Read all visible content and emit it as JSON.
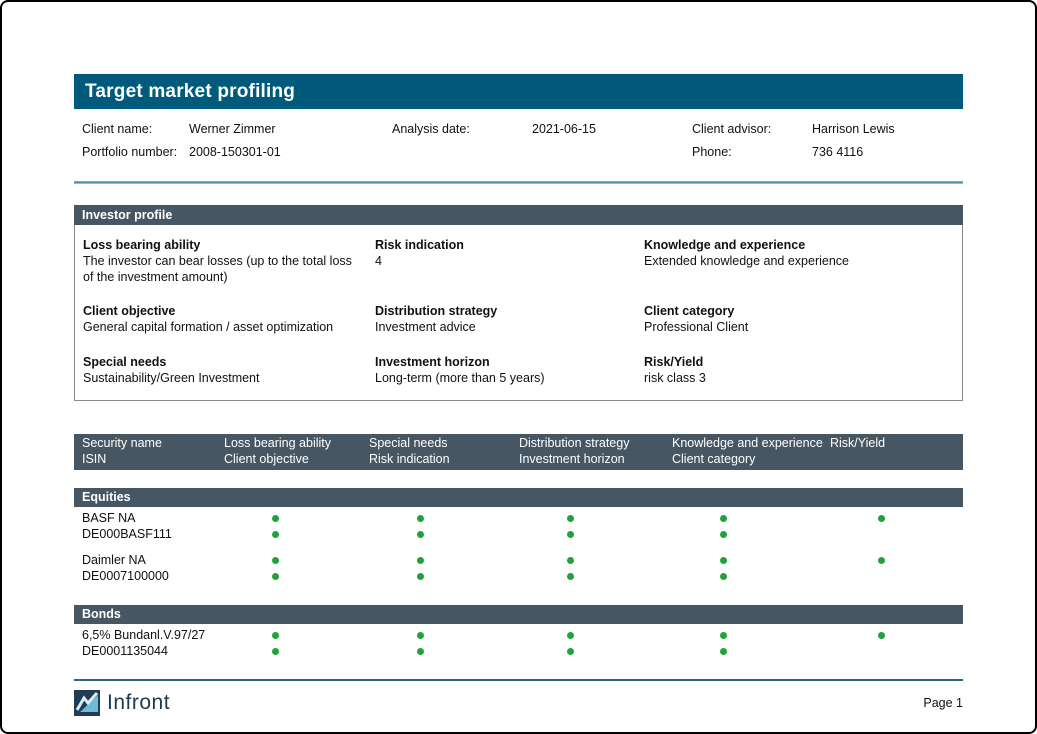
{
  "colors": {
    "title_bar_teal": "#005a7c",
    "section_bar_slate": "#475663",
    "match_dot_green": "#21a33c",
    "divider_teal": "#45809e",
    "brand_navy": "#1d3a52",
    "logo_light_blue": "#6fbcd6"
  },
  "header": {
    "title": "Target market profiling"
  },
  "client_info": {
    "client_name_label": "Client name:",
    "client_name": "Werner Zimmer",
    "portfolio_label": "Portfolio number:",
    "portfolio": "2008-150301-01",
    "analysis_date_label": "Analysis date:",
    "analysis_date": "2021-06-15",
    "advisor_label": "Client advisor:",
    "advisor": "Harrison Lewis",
    "phone_label": "Phone:",
    "phone": "736 4116"
  },
  "investor_profile": {
    "section_title": "Investor profile",
    "fields": [
      {
        "label": "Loss bearing ability",
        "value": "The investor can bear losses (up to the total loss of the investment amount)"
      },
      {
        "label": "Risk indication",
        "value": "4"
      },
      {
        "label": "Knowledge and experience",
        "value": "Extended knowledge and experience"
      },
      {
        "label": "Client objective",
        "value": "General capital formation / asset optimization"
      },
      {
        "label": "Distribution strategy",
        "value": "Investment advice"
      },
      {
        "label": "Client category",
        "value": "Professional Client"
      },
      {
        "label": "Special needs",
        "value": "Sustainability/Green Investment"
      },
      {
        "label": "Investment horizon",
        "value": "Long-term (more than 5 years)"
      },
      {
        "label": "Risk/Yield",
        "value": "risk class 3"
      }
    ]
  },
  "securities_table": {
    "columns": [
      {
        "line1": "Security name",
        "line2": "ISIN"
      },
      {
        "line1": "Loss bearing ability",
        "line2": "Client objective"
      },
      {
        "line1": "Special needs",
        "line2": "Risk indication"
      },
      {
        "line1": "Distribution strategy",
        "line2": "Investment horizon"
      },
      {
        "line1": "Knowledge and experience",
        "line2": "Client category"
      },
      {
        "line1": "Risk/Yield",
        "line2": ""
      }
    ],
    "sections": [
      {
        "title": "Equities",
        "rows": [
          {
            "name": "BASF NA",
            "isin": "DE000BASF111",
            "dots_line1": [
              true,
              true,
              true,
              true,
              true
            ],
            "dots_line2": [
              true,
              true,
              true,
              true,
              false
            ]
          },
          {
            "name": "Daimler NA",
            "isin": "DE0007100000",
            "dots_line1": [
              true,
              true,
              true,
              true,
              true
            ],
            "dots_line2": [
              true,
              true,
              true,
              true,
              false
            ]
          }
        ]
      },
      {
        "title": "Bonds",
        "rows": [
          {
            "name": "6,5% Bundanl.V.97/27",
            "isin": "DE0001135044",
            "dots_line1": [
              true,
              true,
              true,
              true,
              true
            ],
            "dots_line2": [
              true,
              true,
              true,
              true,
              false
            ]
          }
        ]
      }
    ]
  },
  "footer": {
    "brand": "Infront",
    "page": "Page 1"
  }
}
